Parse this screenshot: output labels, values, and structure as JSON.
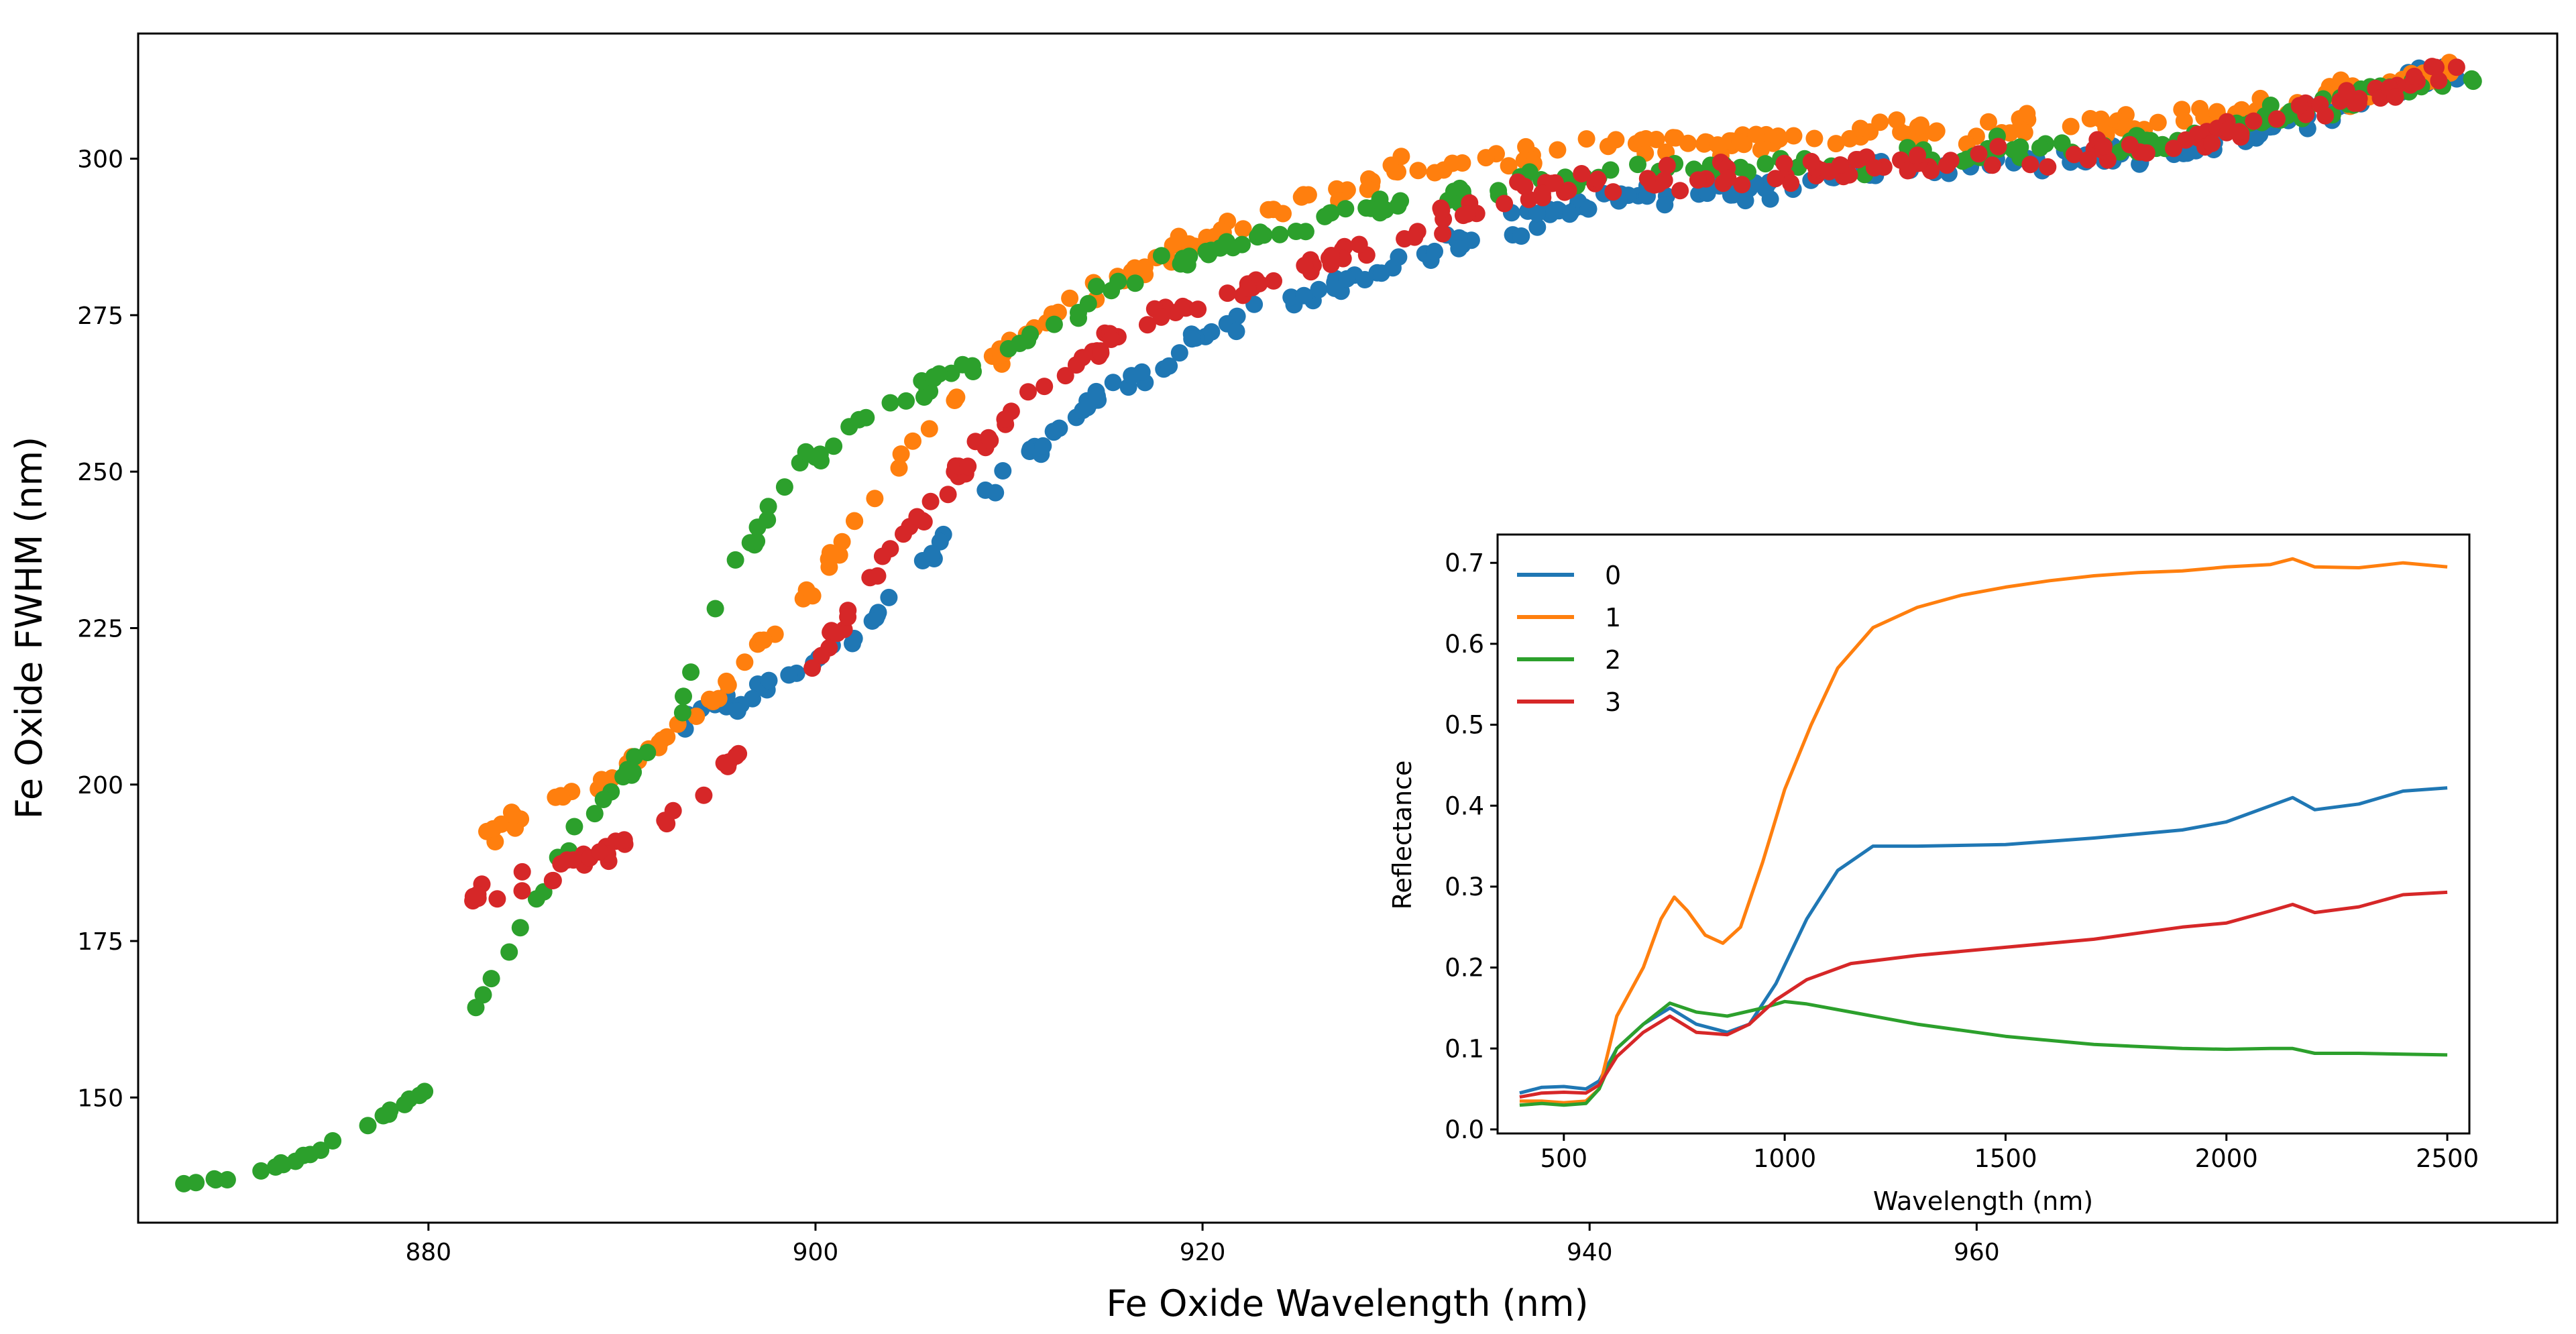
{
  "chart_data": [
    {
      "type": "scatter",
      "xlabel": "Fe Oxide Wavelength (nm)",
      "ylabel": "Fe Oxide FWHM (nm)",
      "xlim": [
        865,
        990
      ],
      "ylim": [
        130,
        320
      ],
      "xticks": [
        "880",
        "900",
        "920",
        "940",
        "960"
      ],
      "yticks": [
        "150",
        "175",
        "200",
        "225",
        "250",
        "275",
        "300"
      ],
      "series": [
        {
          "name": "0",
          "color": "#1f77b4",
          "trend": [
            [
              893,
              210
            ],
            [
              898,
              216
            ],
            [
              902,
              224
            ],
            [
              906,
              236
            ],
            [
              910,
              250
            ],
            [
              915,
              263
            ],
            [
              920,
              271
            ],
            [
              925,
              278
            ],
            [
              930,
              283
            ],
            [
              935,
              288
            ],
            [
              940,
              293
            ],
            [
              950,
              296
            ],
            [
              960,
              300
            ],
            [
              970,
              301
            ],
            [
              985,
              314
            ]
          ]
        },
        {
          "name": "1",
          "color": "#ff7f0e",
          "trend": [
            [
              883,
              192
            ],
            [
              888,
              200
            ],
            [
              893,
              208
            ],
            [
              897,
              222
            ],
            [
              900,
              232
            ],
            [
              903,
              246
            ],
            [
              906,
              258
            ],
            [
              910,
              270
            ],
            [
              915,
              280
            ],
            [
              920,
              287
            ],
            [
              925,
              293
            ],
            [
              930,
              298
            ],
            [
              940,
              302
            ],
            [
              950,
              303
            ],
            [
              960,
              305
            ],
            [
              970,
              306
            ],
            [
              985,
              314
            ]
          ]
        },
        {
          "name": "2",
          "color": "#2ca02c",
          "trend": [
            [
              867,
              136
            ],
            [
              870,
              137
            ],
            [
              873,
              140
            ],
            [
              876,
              144
            ],
            [
              880,
              151
            ],
            [
              888,
              194
            ],
            [
              890,
              200
            ],
            [
              893,
              212
            ],
            [
              896,
              235
            ],
            [
              899,
              251
            ],
            [
              903,
              259
            ],
            [
              907,
              266
            ],
            [
              912,
              273
            ],
            [
              916,
              280
            ],
            [
              920,
              285
            ],
            [
              925,
              289
            ],
            [
              930,
              293
            ],
            [
              940,
              297
            ],
            [
              950,
              299
            ],
            [
              960,
              301
            ],
            [
              970,
              303
            ],
            [
              986,
              314
            ]
          ]
        },
        {
          "name": "3",
          "color": "#d62728",
          "trend": [
            [
              882,
              182
            ],
            [
              885,
              184
            ],
            [
              889,
              189
            ],
            [
              894,
              198
            ],
            [
              898,
              213
            ],
            [
              901,
              224
            ],
            [
              904,
              238
            ],
            [
              908,
              252
            ],
            [
              911,
              262
            ],
            [
              915,
              271
            ],
            [
              920,
              277
            ],
            [
              925,
              282
            ],
            [
              930,
              288
            ],
            [
              935,
              293
            ],
            [
              940,
              296
            ],
            [
              950,
              298
            ],
            [
              960,
              300
            ],
            [
              970,
              302
            ],
            [
              985,
              314
            ]
          ]
        }
      ]
    },
    {
      "type": "line",
      "xlabel": "Wavelength (nm)",
      "ylabel": "Reflectance",
      "xlim": [
        350,
        2550
      ],
      "ylim": [
        -0.005,
        0.735
      ],
      "xticks": [
        "500",
        "1000",
        "1500",
        "2000",
        "2500"
      ],
      "yticks": [
        "0.0",
        "0.1",
        "0.2",
        "0.3",
        "0.4",
        "0.5",
        "0.6",
        "0.7"
      ],
      "legend_position": "top-left",
      "series": [
        {
          "name": "0",
          "color": "#1f77b4",
          "points": [
            [
              400,
              0.045
            ],
            [
              450,
              0.052
            ],
            [
              500,
              0.053
            ],
            [
              550,
              0.05
            ],
            [
              580,
              0.06
            ],
            [
              620,
              0.1
            ],
            [
              680,
              0.13
            ],
            [
              740,
              0.15
            ],
            [
              800,
              0.13
            ],
            [
              870,
              0.12
            ],
            [
              920,
              0.13
            ],
            [
              980,
              0.18
            ],
            [
              1050,
              0.26
            ],
            [
              1120,
              0.32
            ],
            [
              1200,
              0.35
            ],
            [
              1300,
              0.35
            ],
            [
              1500,
              0.352
            ],
            [
              1700,
              0.36
            ],
            [
              1900,
              0.37
            ],
            [
              2000,
              0.38
            ],
            [
              2100,
              0.4
            ],
            [
              2150,
              0.41
            ],
            [
              2200,
              0.395
            ],
            [
              2300,
              0.402
            ],
            [
              2400,
              0.418
            ],
            [
              2500,
              0.422
            ]
          ]
        },
        {
          "name": "1",
          "color": "#ff7f0e",
          "points": [
            [
              400,
              0.035
            ],
            [
              450,
              0.035
            ],
            [
              500,
              0.033
            ],
            [
              550,
              0.035
            ],
            [
              580,
              0.05
            ],
            [
              620,
              0.14
            ],
            [
              680,
              0.2
            ],
            [
              720,
              0.26
            ],
            [
              750,
              0.287
            ],
            [
              780,
              0.27
            ],
            [
              820,
              0.24
            ],
            [
              860,
              0.23
            ],
            [
              900,
              0.25
            ],
            [
              950,
              0.33
            ],
            [
              1000,
              0.42
            ],
            [
              1060,
              0.5
            ],
            [
              1120,
              0.57
            ],
            [
              1200,
              0.62
            ],
            [
              1300,
              0.645
            ],
            [
              1400,
              0.66
            ],
            [
              1500,
              0.67
            ],
            [
              1600,
              0.678
            ],
            [
              1700,
              0.684
            ],
            [
              1800,
              0.688
            ],
            [
              1900,
              0.69
            ],
            [
              2000,
              0.695
            ],
            [
              2100,
              0.698
            ],
            [
              2150,
              0.705
            ],
            [
              2200,
              0.695
            ],
            [
              2300,
              0.694
            ],
            [
              2400,
              0.7
            ],
            [
              2500,
              0.695
            ]
          ]
        },
        {
          "name": "2",
          "color": "#2ca02c",
          "points": [
            [
              400,
              0.03
            ],
            [
              450,
              0.032
            ],
            [
              500,
              0.03
            ],
            [
              550,
              0.032
            ],
            [
              580,
              0.05
            ],
            [
              620,
              0.1
            ],
            [
              680,
              0.13
            ],
            [
              740,
              0.156
            ],
            [
              800,
              0.145
            ],
            [
              870,
              0.14
            ],
            [
              950,
              0.15
            ],
            [
              1000,
              0.158
            ],
            [
              1050,
              0.155
            ],
            [
              1150,
              0.145
            ],
            [
              1300,
              0.13
            ],
            [
              1500,
              0.115
            ],
            [
              1700,
              0.105
            ],
            [
              1900,
              0.1
            ],
            [
              2000,
              0.099
            ],
            [
              2100,
              0.1
            ],
            [
              2150,
              0.1
            ],
            [
              2200,
              0.094
            ],
            [
              2300,
              0.094
            ],
            [
              2400,
              0.093
            ],
            [
              2500,
              0.092
            ]
          ]
        },
        {
          "name": "3",
          "color": "#d62728",
          "points": [
            [
              400,
              0.04
            ],
            [
              450,
              0.045
            ],
            [
              500,
              0.046
            ],
            [
              550,
              0.045
            ],
            [
              580,
              0.055
            ],
            [
              620,
              0.09
            ],
            [
              680,
              0.12
            ],
            [
              740,
              0.14
            ],
            [
              800,
              0.12
            ],
            [
              870,
              0.117
            ],
            [
              920,
              0.13
            ],
            [
              980,
              0.16
            ],
            [
              1050,
              0.185
            ],
            [
              1150,
              0.205
            ],
            [
              1300,
              0.215
            ],
            [
              1500,
              0.225
            ],
            [
              1700,
              0.235
            ],
            [
              1900,
              0.25
            ],
            [
              2000,
              0.255
            ],
            [
              2100,
              0.27
            ],
            [
              2150,
              0.278
            ],
            [
              2200,
              0.268
            ],
            [
              2300,
              0.275
            ],
            [
              2400,
              0.29
            ],
            [
              2500,
              0.293
            ]
          ]
        }
      ]
    }
  ]
}
